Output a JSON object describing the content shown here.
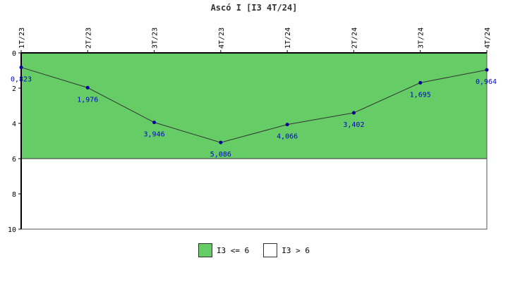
{
  "chart_data": {
    "type": "line",
    "title": "Ascó I [I3 4T/24]",
    "categories": [
      "1T/23",
      "2T/23",
      "3T/23",
      "4T/23",
      "1T/24",
      "2T/24",
      "3T/24",
      "4T/24"
    ],
    "series": [
      {
        "values": [
          0.823,
          1.976,
          3.946,
          5.086,
          4.066,
          3.402,
          1.695,
          0.964
        ]
      }
    ],
    "data_labels": [
      "0,823",
      "1,976",
      "3,946",
      "5,086",
      "4,066",
      "3,402",
      "1,695",
      "0,964"
    ],
    "y_ticks": [
      "0",
      "2",
      "4",
      "6",
      "8",
      "10"
    ],
    "ylim": [
      0,
      10
    ],
    "y_inverted": true,
    "threshold": 6,
    "bands": [
      {
        "label": "I3 <= 6",
        "from": 0,
        "to": 6,
        "color": "#66cc66"
      },
      {
        "label": "I3 > 6",
        "from": 6,
        "to": 10,
        "color": "#ffffff"
      }
    ],
    "line_color": "#333333",
    "marker_color": "#000099",
    "xlabel": "",
    "ylabel": ""
  },
  "legend": {
    "items": [
      {
        "label": "I3 <= 6",
        "color": "#66cc66"
      },
      {
        "label": "I3 > 6",
        "color": "#ffffff"
      }
    ]
  }
}
